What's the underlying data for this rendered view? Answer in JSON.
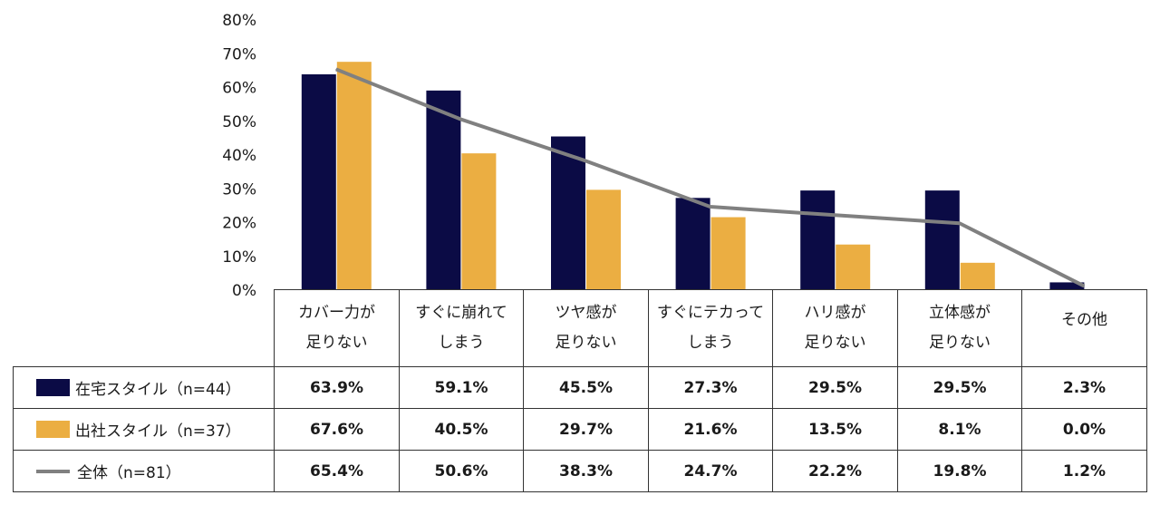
{
  "chart_data": {
    "type": "bar",
    "categories": [
      [
        "カバー力が",
        "足りない"
      ],
      [
        "すぐに崩れて",
        "しまう"
      ],
      [
        "ツヤ感が",
        "足りない"
      ],
      [
        "すぐにテカって",
        "しまう"
      ],
      [
        "ハリ感が",
        "足りない"
      ],
      [
        "立体感が",
        "足りない"
      ],
      [
        "その他"
      ]
    ],
    "ylim": [
      0,
      80
    ],
    "yticks": [
      "0%",
      "10%",
      "20%",
      "30%",
      "40%",
      "50%",
      "60%",
      "70%",
      "80%"
    ],
    "series": [
      {
        "name": "在宅スタイル（n=44）",
        "kind": "bar",
        "color": "#0b0b45",
        "values": [
          63.9,
          59.1,
          45.5,
          27.3,
          29.5,
          29.5,
          2.3
        ],
        "labels": [
          "63.9%",
          "59.1%",
          "45.5%",
          "27.3%",
          "29.5%",
          "29.5%",
          "2.3%"
        ]
      },
      {
        "name": "出社スタイル（n=37）",
        "kind": "bar",
        "color": "#ebae42",
        "values": [
          67.6,
          40.5,
          29.7,
          21.6,
          13.5,
          8.1,
          0.0
        ],
        "labels": [
          "67.6%",
          "40.5%",
          "29.7%",
          "21.6%",
          "13.5%",
          "8.1%",
          "0.0%"
        ]
      },
      {
        "name": "全体（n=81）",
        "kind": "line",
        "color": "#808080",
        "values": [
          65.4,
          50.6,
          38.3,
          24.7,
          22.2,
          19.8,
          1.2
        ],
        "labels": [
          "65.4%",
          "50.6%",
          "38.3%",
          "24.7%",
          "22.2%",
          "19.8%",
          "1.2%"
        ]
      }
    ],
    "legend": "table-left",
    "grid": false
  }
}
